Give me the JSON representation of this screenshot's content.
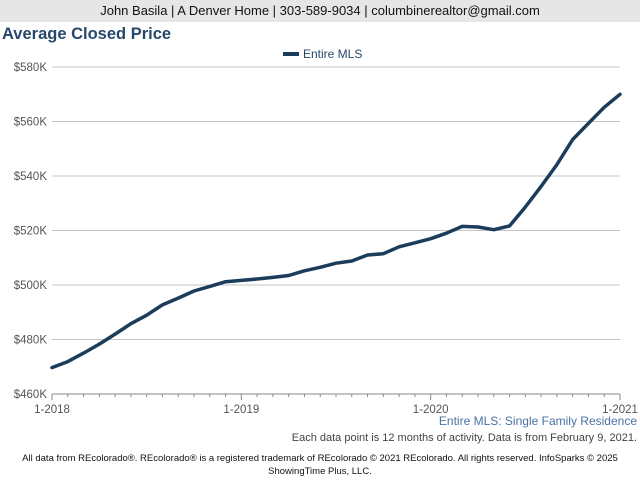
{
  "header": {
    "contact_line": "John Basila | A Denver Home | 303-589-9034 | columbinerealtor@gmail.com"
  },
  "chart_data": {
    "type": "line",
    "title": "Average Closed Price",
    "xlabel": "",
    "ylabel": "",
    "x_ticks": [
      "1-2018",
      "1-2019",
      "1-2020",
      "1-2021"
    ],
    "y_ticks": [
      "$460K",
      "$480K",
      "$500K",
      "$520K",
      "$540K",
      "$560K",
      "$580K"
    ],
    "ylim": [
      460000,
      580000
    ],
    "grid": true,
    "legend_position": "top-center",
    "x": [
      "2018-01",
      "2018-02",
      "2018-03",
      "2018-04",
      "2018-05",
      "2018-06",
      "2018-07",
      "2018-08",
      "2018-09",
      "2018-10",
      "2018-11",
      "2018-12",
      "2019-01",
      "2019-02",
      "2019-03",
      "2019-04",
      "2019-05",
      "2019-06",
      "2019-07",
      "2019-08",
      "2019-09",
      "2019-10",
      "2019-11",
      "2019-12",
      "2020-01",
      "2020-02",
      "2020-03",
      "2020-04",
      "2020-05",
      "2020-06",
      "2020-07",
      "2020-08",
      "2020-09",
      "2020-10",
      "2020-11",
      "2020-12",
      "2021-01"
    ],
    "series": [
      {
        "name": "Entire MLS",
        "color": "#1b3d5c",
        "values": [
          469700,
          471900,
          475000,
          478300,
          482000,
          485800,
          488900,
          492700,
          495200,
          497800,
          499500,
          501200,
          501700,
          502200,
          502800,
          503500,
          505200,
          506500,
          508000,
          508800,
          511000,
          511500,
          514000,
          515500,
          517000,
          519000,
          521500,
          521300,
          520300,
          521700,
          528600,
          536200,
          544200,
          553400,
          559300,
          565200,
          570000
        ]
      }
    ]
  },
  "captions": {
    "subtitle": "Entire MLS: Single Family Residence",
    "note": "Each data point is 12 months of activity. Data is from February 9, 2021."
  },
  "footer": {
    "line1": "All data from REcolorado®. REcolorado® is a registered trademark of REcolorado © 2021 REcolorado. All rights reserved. InfoSparks © 2025",
    "line2": "ShowingTime Plus, LLC."
  }
}
